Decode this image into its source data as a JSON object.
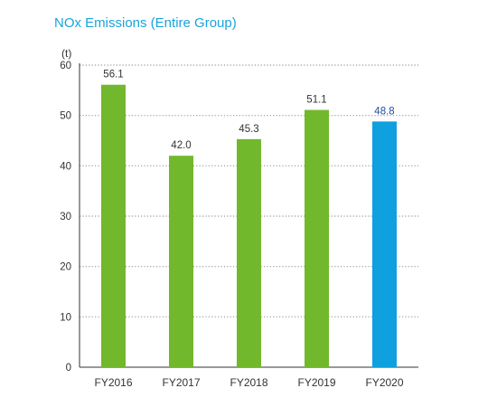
{
  "title": "NOx Emissions (Entire Group)",
  "unit": "(t)",
  "colors": {
    "title": "#1aa3dc",
    "bar_default": "#72b82c",
    "bar_highlight": "#0ea0df",
    "label_highlight": "#1b4f9c",
    "grid": "#999999",
    "text": "#333333"
  },
  "chart_data": {
    "type": "bar",
    "title": "NOx Emissions (Entire Group)",
    "ylabel": "(t)",
    "xlabel": "",
    "ylim": [
      0,
      60
    ],
    "yticks": [
      0,
      10,
      20,
      30,
      40,
      50,
      60
    ],
    "grid": true,
    "categories": [
      "FY2016",
      "FY2017",
      "FY2018",
      "FY2019",
      "FY2020"
    ],
    "values": [
      56.1,
      42.0,
      45.3,
      51.1,
      48.8
    ],
    "value_labels": [
      "56.1",
      "42.0",
      "45.3",
      "51.1",
      "48.8"
    ],
    "highlight_index": 4
  }
}
